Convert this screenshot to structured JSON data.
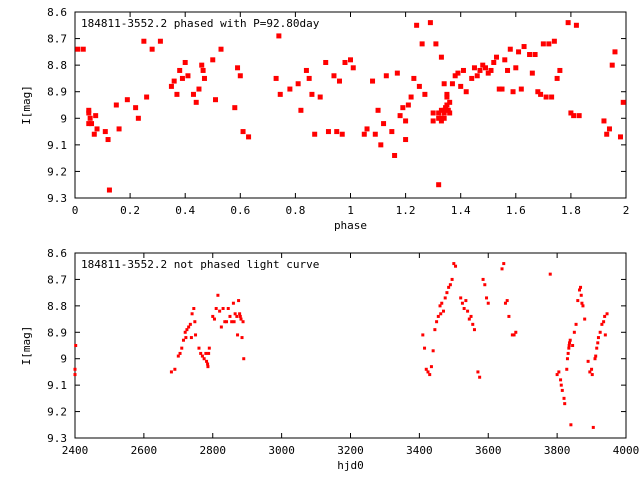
{
  "colors": {
    "series": "#ff0000",
    "axis": "#000000",
    "background": "#ffffff"
  },
  "chart_data": [
    {
      "type": "scatter",
      "title": "184811-3552.2 phased with P=92.80day",
      "xlabel": "phase",
      "ylabel": "I[mag]",
      "xlim": [
        0,
        2
      ],
      "ylim": [
        8.6,
        9.3
      ],
      "y_inverted": true,
      "grid": false,
      "marker": "filled-square",
      "xticks": [
        "0",
        "0.2",
        "0.4",
        "0.6",
        "0.8",
        "1",
        "1.2",
        "1.4",
        "1.6",
        "1.8",
        "2"
      ],
      "yticks": [
        "8.6",
        "8.7",
        "8.8",
        "8.9",
        "9",
        "9.1",
        "9.2",
        "9.3"
      ],
      "points": [
        [
          0.01,
          8.74
        ],
        [
          0.03,
          8.74
        ],
        [
          0.05,
          9.02
        ],
        [
          0.05,
          8.98
        ],
        [
          0.05,
          8.97
        ],
        [
          0.055,
          9.0
        ],
        [
          0.06,
          9.02
        ],
        [
          0.07,
          9.06
        ],
        [
          0.075,
          8.99
        ],
        [
          0.08,
          9.04
        ],
        [
          0.11,
          9.05
        ],
        [
          0.12,
          9.08
        ],
        [
          0.125,
          9.27
        ],
        [
          0.15,
          8.95
        ],
        [
          0.16,
          9.04
        ],
        [
          0.19,
          8.93
        ],
        [
          0.22,
          8.96
        ],
        [
          0.23,
          9.0
        ],
        [
          0.25,
          8.71
        ],
        [
          0.26,
          8.92
        ],
        [
          0.28,
          8.74
        ],
        [
          0.31,
          8.71
        ],
        [
          0.35,
          8.88
        ],
        [
          0.36,
          8.86
        ],
        [
          0.37,
          8.91
        ],
        [
          0.38,
          8.82
        ],
        [
          0.39,
          8.85
        ],
        [
          0.4,
          8.79
        ],
        [
          0.41,
          8.84
        ],
        [
          0.43,
          8.91
        ],
        [
          0.44,
          8.94
        ],
        [
          0.45,
          8.89
        ],
        [
          0.46,
          8.8
        ],
        [
          0.465,
          8.82
        ],
        [
          0.47,
          8.85
        ],
        [
          0.5,
          8.78
        ],
        [
          0.51,
          8.93
        ],
        [
          0.53,
          8.74
        ],
        [
          0.58,
          8.96
        ],
        [
          0.59,
          8.81
        ],
        [
          0.6,
          8.84
        ],
        [
          0.61,
          9.05
        ],
        [
          0.63,
          9.07
        ],
        [
          0.73,
          8.85
        ],
        [
          0.74,
          8.69
        ],
        [
          0.745,
          8.91
        ],
        [
          0.78,
          8.89
        ],
        [
          0.81,
          8.87
        ],
        [
          0.82,
          8.97
        ],
        [
          0.84,
          8.82
        ],
        [
          0.85,
          8.85
        ],
        [
          0.86,
          8.91
        ],
        [
          0.87,
          9.06
        ],
        [
          0.89,
          8.92
        ],
        [
          0.91,
          8.79
        ],
        [
          0.92,
          9.05
        ],
        [
          0.94,
          8.84
        ],
        [
          0.95,
          9.05
        ],
        [
          0.96,
          8.86
        ],
        [
          0.97,
          9.06
        ],
        [
          0.98,
          8.79
        ],
        [
          1.0,
          8.78
        ],
        [
          1.01,
          8.81
        ],
        [
          1.05,
          9.06
        ],
        [
          1.06,
          9.04
        ],
        [
          1.08,
          8.86
        ],
        [
          1.09,
          9.06
        ],
        [
          1.1,
          8.97
        ],
        [
          1.11,
          9.1
        ],
        [
          1.12,
          9.02
        ],
        [
          1.13,
          8.84
        ],
        [
          1.15,
          9.05
        ],
        [
          1.16,
          9.14
        ],
        [
          1.17,
          8.83
        ],
        [
          1.18,
          8.99
        ],
        [
          1.19,
          8.96
        ],
        [
          1.2,
          9.01
        ],
        [
          1.2,
          9.08
        ],
        [
          1.21,
          8.95
        ],
        [
          1.22,
          8.92
        ],
        [
          1.23,
          8.85
        ],
        [
          1.24,
          8.65
        ],
        [
          1.25,
          8.88
        ],
        [
          1.26,
          8.72
        ],
        [
          1.27,
          8.91
        ],
        [
          1.29,
          8.64
        ],
        [
          1.3,
          9.01
        ],
        [
          1.3,
          8.98
        ],
        [
          1.31,
          8.72
        ],
        [
          1.32,
          9.0
        ],
        [
          1.32,
          8.98
        ],
        [
          1.32,
          9.25
        ],
        [
          1.33,
          8.97
        ],
        [
          1.33,
          9.0
        ],
        [
          1.33,
          9.01
        ],
        [
          1.34,
          8.98
        ],
        [
          1.34,
          8.97
        ],
        [
          1.34,
          9.0
        ],
        [
          1.345,
          8.96
        ],
        [
          1.35,
          8.95
        ],
        [
          1.35,
          8.92
        ],
        [
          1.35,
          8.91
        ],
        [
          1.355,
          8.97
        ],
        [
          1.36,
          8.94
        ],
        [
          1.36,
          8.98
        ],
        [
          1.33,
          8.77
        ],
        [
          1.34,
          8.87
        ],
        [
          1.37,
          8.87
        ],
        [
          1.38,
          8.84
        ],
        [
          1.39,
          8.83
        ],
        [
          1.4,
          8.88
        ],
        [
          1.41,
          8.82
        ],
        [
          1.42,
          8.9
        ],
        [
          1.44,
          8.85
        ],
        [
          1.45,
          8.81
        ],
        [
          1.46,
          8.84
        ],
        [
          1.47,
          8.82
        ],
        [
          1.48,
          8.8
        ],
        [
          1.49,
          8.81
        ],
        [
          1.5,
          8.83
        ],
        [
          1.51,
          8.82
        ],
        [
          1.52,
          8.79
        ],
        [
          1.53,
          8.77
        ],
        [
          1.54,
          8.89
        ],
        [
          1.55,
          8.89
        ],
        [
          1.56,
          8.78
        ],
        [
          1.57,
          8.82
        ],
        [
          1.58,
          8.74
        ],
        [
          1.59,
          8.9
        ],
        [
          1.6,
          8.81
        ],
        [
          1.61,
          8.75
        ],
        [
          1.62,
          8.89
        ],
        [
          1.63,
          8.73
        ],
        [
          1.65,
          8.76
        ],
        [
          1.66,
          8.83
        ],
        [
          1.67,
          8.76
        ],
        [
          1.68,
          8.9
        ],
        [
          1.69,
          8.91
        ],
        [
          1.7,
          8.72
        ],
        [
          1.71,
          8.92
        ],
        [
          1.72,
          8.72
        ],
        [
          1.73,
          8.92
        ],
        [
          1.74,
          8.71
        ],
        [
          1.75,
          8.85
        ],
        [
          1.76,
          8.82
        ],
        [
          1.79,
          8.64
        ],
        [
          1.8,
          8.98
        ],
        [
          1.81,
          8.99
        ],
        [
          1.82,
          8.65
        ],
        [
          1.83,
          8.99
        ],
        [
          1.92,
          9.01
        ],
        [
          1.93,
          9.06
        ],
        [
          1.94,
          9.04
        ],
        [
          1.95,
          8.8
        ],
        [
          1.96,
          8.75
        ],
        [
          1.98,
          9.07
        ],
        [
          1.99,
          8.94
        ]
      ]
    },
    {
      "type": "scatter",
      "title": "184811-3552.2 not phased light curve",
      "xlabel": "hjd0",
      "ylabel": "I[mag]",
      "xlim": [
        2400,
        4000
      ],
      "ylim": [
        8.6,
        9.3
      ],
      "y_inverted": true,
      "grid": false,
      "marker": "small-dot",
      "xticks": [
        "2400",
        "2600",
        "2800",
        "3000",
        "3200",
        "3400",
        "3600",
        "3800",
        "4000"
      ],
      "yticks": [
        "8.6",
        "8.7",
        "8.8",
        "8.9",
        "9",
        "9.1",
        "9.2",
        "9.3"
      ],
      "points": [
        [
          2400,
          9.04
        ],
        [
          2400,
          9.06
        ],
        [
          2402,
          8.95
        ],
        [
          2680,
          9.05
        ],
        [
          2690,
          9.04
        ],
        [
          2700,
          8.99
        ],
        [
          2705,
          8.98
        ],
        [
          2710,
          8.96
        ],
        [
          2715,
          8.93
        ],
        [
          2720,
          8.9
        ],
        [
          2722,
          8.92
        ],
        [
          2725,
          8.89
        ],
        [
          2730,
          8.88
        ],
        [
          2735,
          8.87
        ],
        [
          2738,
          8.92
        ],
        [
          2740,
          8.83
        ],
        [
          2745,
          8.81
        ],
        [
          2748,
          8.86
        ],
        [
          2750,
          8.91
        ],
        [
          2760,
          8.96
        ],
        [
          2765,
          8.98
        ],
        [
          2770,
          8.99
        ],
        [
          2775,
          9.0
        ],
        [
          2780,
          8.98
        ],
        [
          2782,
          9.01
        ],
        [
          2785,
          9.02
        ],
        [
          2786,
          9.03
        ],
        [
          2788,
          8.98
        ],
        [
          2790,
          8.96
        ],
        [
          2800,
          8.84
        ],
        [
          2805,
          8.85
        ],
        [
          2810,
          8.81
        ],
        [
          2815,
          8.76
        ],
        [
          2820,
          8.82
        ],
        [
          2825,
          8.88
        ],
        [
          2830,
          8.81
        ],
        [
          2835,
          8.86
        ],
        [
          2840,
          8.86
        ],
        [
          2845,
          8.81
        ],
        [
          2850,
          8.84
        ],
        [
          2855,
          8.86
        ],
        [
          2860,
          8.79
        ],
        [
          2862,
          8.86
        ],
        [
          2865,
          8.83
        ],
        [
          2870,
          8.84
        ],
        [
          2872,
          8.91
        ],
        [
          2875,
          8.78
        ],
        [
          2878,
          8.83
        ],
        [
          2880,
          8.84
        ],
        [
          2882,
          8.85
        ],
        [
          2885,
          8.92
        ],
        [
          2888,
          8.86
        ],
        [
          2890,
          9.0
        ],
        [
          3410,
          8.91
        ],
        [
          3415,
          8.96
        ],
        [
          3420,
          9.04
        ],
        [
          3425,
          9.05
        ],
        [
          3430,
          9.06
        ],
        [
          3435,
          9.03
        ],
        [
          3440,
          8.97
        ],
        [
          3445,
          8.89
        ],
        [
          3450,
          8.86
        ],
        [
          3455,
          8.84
        ],
        [
          3460,
          8.8
        ],
        [
          3462,
          8.83
        ],
        [
          3465,
          8.79
        ],
        [
          3470,
          8.82
        ],
        [
          3475,
          8.77
        ],
        [
          3480,
          8.75
        ],
        [
          3485,
          8.73
        ],
        [
          3490,
          8.72
        ],
        [
          3495,
          8.7
        ],
        [
          3500,
          8.64
        ],
        [
          3505,
          8.65
        ],
        [
          3520,
          8.77
        ],
        [
          3525,
          8.79
        ],
        [
          3530,
          8.81
        ],
        [
          3535,
          8.78
        ],
        [
          3540,
          8.82
        ],
        [
          3545,
          8.85
        ],
        [
          3550,
          8.84
        ],
        [
          3555,
          8.87
        ],
        [
          3560,
          8.89
        ],
        [
          3570,
          9.05
        ],
        [
          3575,
          9.07
        ],
        [
          3585,
          8.7
        ],
        [
          3590,
          8.72
        ],
        [
          3595,
          8.77
        ],
        [
          3600,
          8.79
        ],
        [
          3640,
          8.66
        ],
        [
          3645,
          8.64
        ],
        [
          3650,
          8.79
        ],
        [
          3655,
          8.78
        ],
        [
          3660,
          8.84
        ],
        [
          3670,
          8.91
        ],
        [
          3675,
          8.91
        ],
        [
          3680,
          8.9
        ],
        [
          3780,
          8.68
        ],
        [
          3800,
          9.06
        ],
        [
          3805,
          9.05
        ],
        [
          3810,
          9.08
        ],
        [
          3812,
          9.1
        ],
        [
          3815,
          9.12
        ],
        [
          3820,
          9.15
        ],
        [
          3822,
          9.17
        ],
        [
          3828,
          9.04
        ],
        [
          3830,
          9.0
        ],
        [
          3832,
          8.98
        ],
        [
          3834,
          8.96
        ],
        [
          3835,
          8.95
        ],
        [
          3836,
          8.94
        ],
        [
          3838,
          8.93
        ],
        [
          3840,
          9.25
        ],
        [
          3845,
          8.95
        ],
        [
          3850,
          8.9
        ],
        [
          3855,
          8.87
        ],
        [
          3860,
          8.78
        ],
        [
          3865,
          8.74
        ],
        [
          3868,
          8.73
        ],
        [
          3870,
          8.76
        ],
        [
          3872,
          8.79
        ],
        [
          3875,
          8.8
        ],
        [
          3880,
          8.85
        ],
        [
          3890,
          9.01
        ],
        [
          3895,
          9.05
        ],
        [
          3900,
          9.04
        ],
        [
          3902,
          9.06
        ],
        [
          3905,
          9.26
        ],
        [
          3910,
          9.0
        ],
        [
          3912,
          8.99
        ],
        [
          3915,
          8.96
        ],
        [
          3918,
          8.94
        ],
        [
          3920,
          8.92
        ],
        [
          3925,
          8.9
        ],
        [
          3930,
          8.87
        ],
        [
          3935,
          8.86
        ],
        [
          3938,
          8.84
        ],
        [
          3940,
          8.91
        ],
        [
          3945,
          8.83
        ]
      ]
    }
  ]
}
